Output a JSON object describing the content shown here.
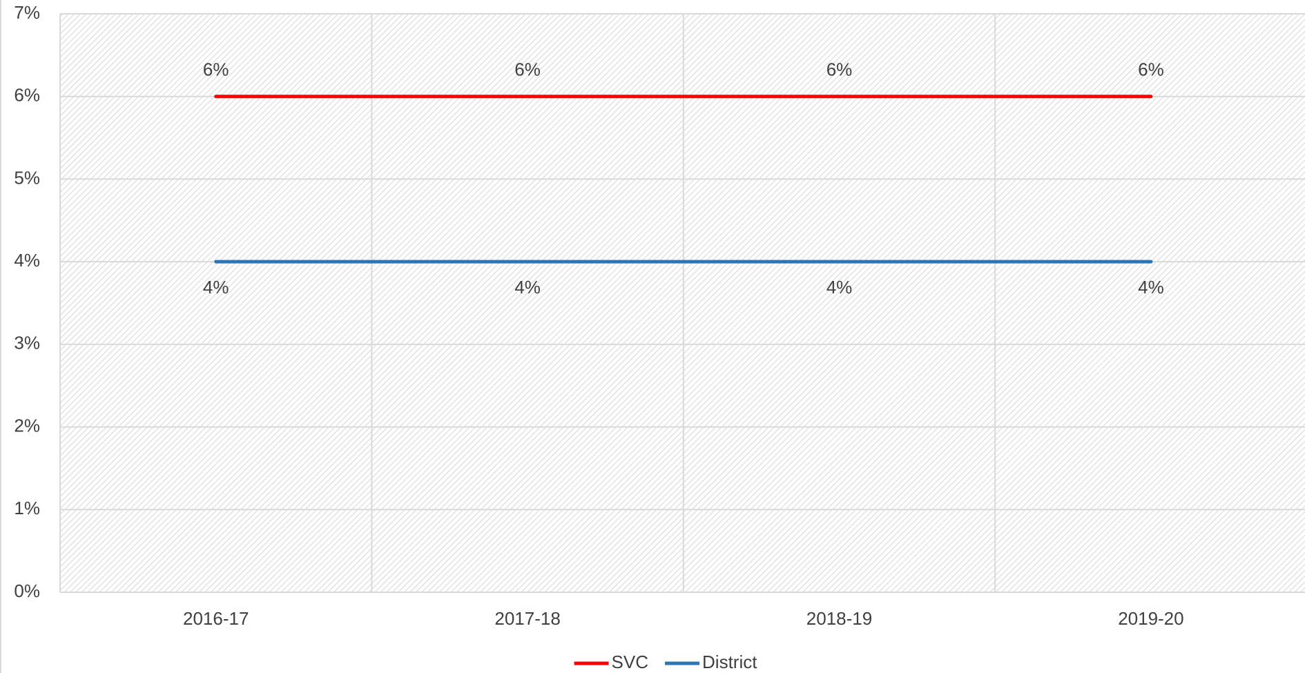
{
  "chart_data": {
    "type": "line",
    "categories": [
      "2016-17",
      "2017-18",
      "2018-19",
      "2019-20"
    ],
    "series": [
      {
        "name": "SVC",
        "color": "#ff0000",
        "values": [
          6,
          6,
          6,
          6
        ],
        "value_labels": [
          "6%",
          "6%",
          "6%",
          "6%"
        ]
      },
      {
        "name": "District",
        "color": "#2e75b6",
        "values": [
          4,
          4,
          4,
          4
        ],
        "value_labels": [
          "4%",
          "4%",
          "4%",
          "4%"
        ]
      }
    ],
    "ylim": [
      0,
      7
    ],
    "yticks": [
      {
        "value": 0,
        "label": "0%"
      },
      {
        "value": 1,
        "label": "1%"
      },
      {
        "value": 2,
        "label": "2%"
      },
      {
        "value": 3,
        "label": "3%"
      },
      {
        "value": 4,
        "label": "4%"
      },
      {
        "value": 5,
        "label": "5%"
      },
      {
        "value": 6,
        "label": "6%"
      },
      {
        "value": 7,
        "label": "7%"
      }
    ],
    "grid": true,
    "legend": "bottom"
  }
}
